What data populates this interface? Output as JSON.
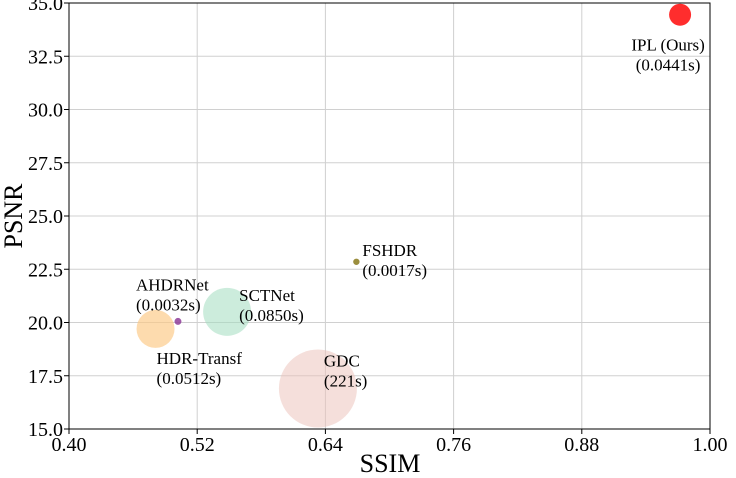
{
  "chart_data": {
    "type": "scatter",
    "title": "",
    "xlabel": "SSIM",
    "ylabel": "PSNR",
    "xlim": [
      0.4,
      1.0
    ],
    "ylim": [
      15.0,
      35.0
    ],
    "xticks": [
      "0.40",
      "0.52",
      "0.64",
      "0.76",
      "0.88",
      "1.00"
    ],
    "yticks": [
      "15.0",
      "17.5",
      "20.0",
      "22.5",
      "25.0",
      "27.5",
      "30.0",
      "32.5",
      "35.0"
    ],
    "grid": true,
    "points": [
      {
        "name": "GDC",
        "time": "(221s)",
        "x": 0.633,
        "y": 16.9,
        "color": "#ebc0b8",
        "opacity": 0.5
      },
      {
        "name": "SCTNet",
        "time": "(0.0850s)",
        "x": 0.548,
        "y": 20.5,
        "color": "#a3dcc0",
        "opacity": 0.55
      },
      {
        "name": "HDR-Transf",
        "time": "(0.0512s)",
        "x": 0.481,
        "y": 19.7,
        "color": "#fcc883",
        "opacity": 0.65
      },
      {
        "name": "AHDRNet",
        "time": "(0.0032s)",
        "x": 0.502,
        "y": 20.05,
        "color": "#8e3d99",
        "opacity": 0.85
      },
      {
        "name": "FSHDR",
        "time": "(0.0017s)",
        "x": 0.669,
        "y": 22.85,
        "color": "#8a7a1c",
        "opacity": 0.85
      },
      {
        "name": "IPL (Ours)",
        "time": "(0.0441s)",
        "x": 0.972,
        "y": 34.45,
        "color": "#ff2222",
        "opacity": 0.95
      }
    ]
  }
}
